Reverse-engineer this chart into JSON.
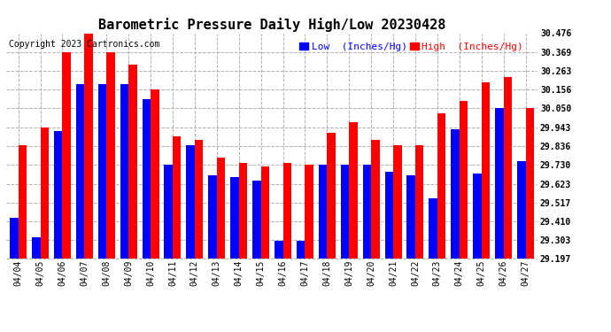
{
  "title": "Barometric Pressure Daily High/Low 20230428",
  "copyright": "Copyright 2023 Cartronics.com",
  "legend_low": "Low  (Inches/Hg)",
  "legend_high": "High  (Inches/Hg)",
  "dates": [
    "04/04",
    "04/05",
    "04/06",
    "04/07",
    "04/08",
    "04/09",
    "04/10",
    "04/11",
    "04/12",
    "04/13",
    "04/14",
    "04/15",
    "04/16",
    "04/17",
    "04/18",
    "04/19",
    "04/20",
    "04/21",
    "04/22",
    "04/23",
    "04/24",
    "04/25",
    "04/26",
    "04/27"
  ],
  "low_values": [
    29.43,
    29.32,
    29.92,
    30.19,
    30.19,
    30.19,
    30.1,
    29.73,
    29.84,
    29.67,
    29.66,
    29.64,
    29.3,
    29.3,
    29.73,
    29.73,
    29.73,
    29.69,
    29.67,
    29.54,
    29.93,
    29.68,
    30.05,
    29.75
  ],
  "high_values": [
    29.84,
    29.94,
    30.37,
    30.48,
    30.37,
    30.3,
    30.16,
    29.89,
    29.87,
    29.77,
    29.74,
    29.72,
    29.74,
    29.73,
    29.91,
    29.97,
    29.87,
    29.84,
    29.84,
    30.02,
    30.09,
    30.2,
    30.23,
    30.05
  ],
  "low_color": "#0000ff",
  "high_color": "#ff0000",
  "background_color": "#ffffff",
  "ylim_min": 29.197,
  "ylim_max": 30.476,
  "yticks": [
    29.197,
    29.303,
    29.41,
    29.517,
    29.623,
    29.73,
    29.836,
    29.943,
    30.05,
    30.156,
    30.263,
    30.369,
    30.476
  ],
  "title_fontsize": 11,
  "copyright_fontsize": 7,
  "legend_fontsize": 8,
  "tick_fontsize": 7,
  "bar_width": 0.38,
  "grid_color": "#b0b0b0",
  "grid_style": "--"
}
